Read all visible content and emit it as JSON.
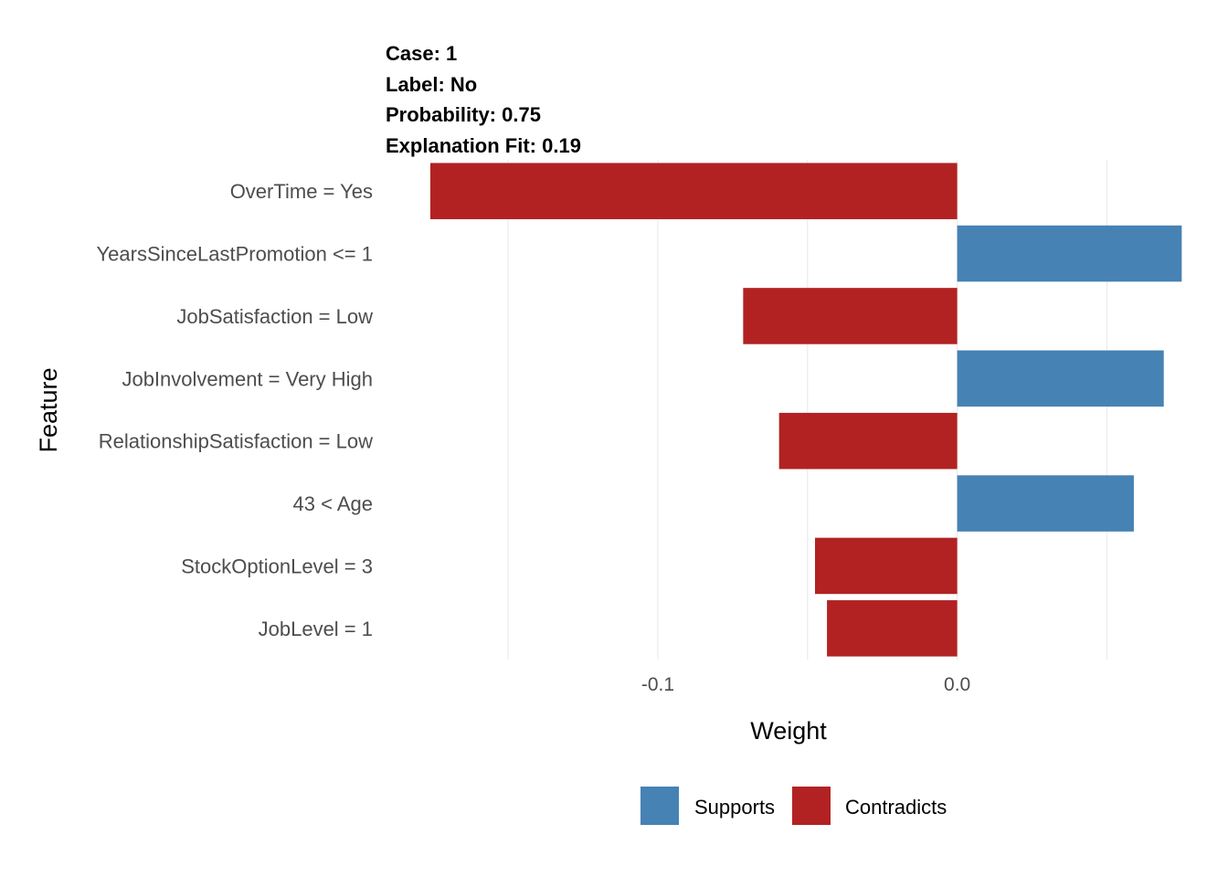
{
  "chart_data": {
    "type": "bar",
    "orientation": "horizontal",
    "header": {
      "case": "Case: 1",
      "label": "Label: No",
      "probability": "Probability: 0.75",
      "fit": "Explanation Fit: 0.19"
    },
    "categories": [
      "OverTime = Yes",
      "YearsSinceLastPromotion <= 1",
      "JobSatisfaction = Low",
      "JobInvolvement = Very High",
      "RelationshipSatisfaction = Low",
      "43 < Age",
      "StockOptionLevel = 3",
      "JobLevel = 1"
    ],
    "values": [
      -0.176,
      0.075,
      -0.0715,
      0.069,
      -0.0595,
      0.059,
      -0.0475,
      -0.0435
    ],
    "x_ticks": [
      -0.1,
      0.0
    ],
    "x_tick_labels": [
      "-0.1",
      "0.0"
    ],
    "xlabel": "Weight",
    "ylabel": "Feature",
    "xlim": [
      -0.1885,
      0.0755
    ],
    "grid": true,
    "legend": {
      "position": "bottom",
      "items": [
        {
          "label": "Supports",
          "color": "#4682b4"
        },
        {
          "label": "Contradicts",
          "color": "#b22222"
        }
      ]
    },
    "colors": {
      "supports": "#4682b4",
      "contradicts": "#b22222"
    }
  }
}
